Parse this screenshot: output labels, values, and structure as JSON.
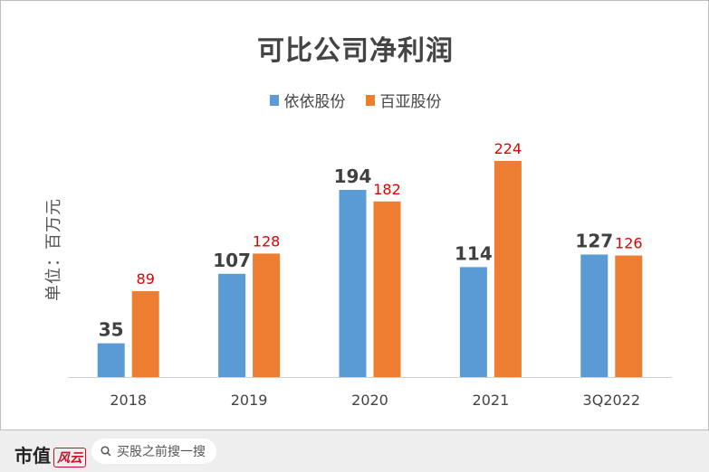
{
  "chart_data": {
    "type": "bar",
    "title": "可比公司净利润",
    "ylabel": "单位：百万元",
    "categories": [
      "2018",
      "2019",
      "2020",
      "2021",
      "3Q2022"
    ],
    "series": [
      {
        "name": "依依股份",
        "values": [
          35,
          107,
          194,
          114,
          127
        ],
        "color": "#5b9bd5",
        "label_color": "#404040"
      },
      {
        "name": "百亚股份",
        "values": [
          89,
          128,
          182,
          224,
          126
        ],
        "color": "#ed7d31",
        "label_color": "#e00000"
      }
    ],
    "ylim": [
      0,
      224
    ],
    "grid": false,
    "legend": "top-center"
  },
  "footer": {
    "logo_text": "市值",
    "logo_mark": "风云",
    "search_placeholder": "买股之前搜一搜"
  }
}
